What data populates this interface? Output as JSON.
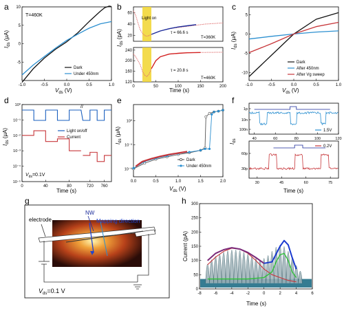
{
  "panel_letters": {
    "a": "a",
    "b": "b",
    "c": "c",
    "d": "d",
    "e": "e",
    "f": "f",
    "g": "g",
    "h": "h"
  },
  "colors": {
    "dark": "#111111",
    "blue": "#2b8fd0",
    "red": "#c7363a",
    "navy": "#1a2a9a",
    "green": "#33c23b",
    "purple": "#7a2a7a",
    "yellow": "#f2d73a",
    "teal": "#1f6e86"
  },
  "panel_a": {
    "annot": "T=460K",
    "ylabel_main": "I",
    "ylabel_sub": "ds",
    "ylabel_unit": " (μA)",
    "xlabel_main": "V",
    "xlabel_sub": "ds",
    "xlabel_unit": " (V)",
    "legend": [
      "Dark",
      "Under 450nm"
    ]
  },
  "panel_b": {
    "light_label": "Light on",
    "top_annot": "τ = 66.6 s",
    "top_temp": "T=360K",
    "bot_annot": "τ = 20.8 s",
    "bot_temp": "T=460K",
    "ylabel_main": "I",
    "ylabel_sub": "ds",
    "ylabel_unit": " (pA)",
    "xlabel": "Time (s)"
  },
  "panel_c": {
    "ylabel_main": "I",
    "ylabel_sub": "ds",
    "ylabel_unit": " (μA)",
    "xlabel_main": "V",
    "xlabel_sub": "ds",
    "xlabel_unit": " (V)",
    "legend": [
      "Dark",
      "After 450nm",
      "After Vg sweep"
    ]
  },
  "panel_d": {
    "legend": [
      "Light on/off",
      "Current"
    ],
    "annot_main": "V",
    "annot_sub": "ds",
    "annot_rest": "=0.1V",
    "ylabel_main": "I",
    "ylabel_sub": "ds",
    "ylabel_unit": " (μA)",
    "xlabel": "Time (s)"
  },
  "panel_e": {
    "ylabel_main": "I",
    "ylabel_sub": "ds",
    "ylabel_unit": " (μA)",
    "xlabel_main": "V",
    "xlabel_sub": "ds",
    "xlabel_unit": " (V)",
    "legend": [
      "Dark",
      "Under 450nm"
    ]
  },
  "panel_f": {
    "top_legend": "1.5V",
    "bot_legend": "0.2V",
    "ylabel_main": "I",
    "ylabel_sub": "ds",
    "xlabel": "Time (s)"
  },
  "panel_g": {
    "electrode": "electrode",
    "nw": "NW",
    "mapping": "Mapping direction",
    "vds_main": "V",
    "vds_sub": "ds",
    "vds_rest": "=0.1 V"
  },
  "panel_h": {
    "ylabel": "Current (pA)",
    "xlabel": "Time (s)"
  },
  "chart_data": [
    {
      "panel": "a",
      "type": "line",
      "xlabel": "Vds (V)",
      "ylabel": "Ids (μA)",
      "xlim": [
        -1.0,
        1.0
      ],
      "ylim": [
        -10,
        10
      ],
      "xticks": [
        "-1.0",
        "-0.5",
        "0.0",
        "0.5",
        "1.0"
      ],
      "yticks": [
        "-5",
        "0",
        "5",
        "10"
      ],
      "series": [
        {
          "name": "Dark",
          "x": [
            -1.0,
            -0.75,
            -0.5,
            -0.25,
            0,
            0.25,
            0.5,
            0.75,
            0.85,
            0.95,
            1.0
          ],
          "y": [
            -10.5,
            -6.8,
            -3.9,
            -1.5,
            0.5,
            3.0,
            6.0,
            8.8,
            9.8,
            10.2,
            10.1
          ]
        },
        {
          "name": "Under 450nm",
          "x": [
            -1.0,
            -0.75,
            -0.5,
            -0.25,
            0,
            0.25,
            0.5,
            0.75,
            1.0
          ],
          "y": [
            -8.5,
            -5.8,
            -3.5,
            -1.2,
            0.9,
            2.6,
            4.2,
            5.4,
            6.0
          ]
        }
      ]
    },
    {
      "panel": "b-top",
      "type": "line",
      "xlabel": "Time (s)",
      "ylabel": "Ids (pA)",
      "xlim": [
        0,
        200
      ],
      "ylim": [
        10,
        70
      ],
      "yticks": [
        "20",
        "40",
        "60"
      ],
      "light_on": [
        20,
        40
      ],
      "series": [
        {
          "name": "data",
          "x": [
            0,
            5,
            10,
            15,
            20,
            25,
            30,
            35,
            40,
            50,
            60,
            80,
            100,
            120,
            140,
            160,
            180,
            200
          ],
          "y": [
            63,
            55,
            42,
            30,
            24,
            20,
            19,
            20,
            22,
            25,
            28,
            32,
            34,
            36,
            38,
            40,
            41,
            42
          ]
        },
        {
          "name": "fit",
          "x": [
            40,
            60,
            80,
            100,
            120,
            140
          ],
          "y": [
            22,
            28,
            32,
            35,
            37,
            39
          ]
        }
      ]
    },
    {
      "panel": "b-bottom",
      "type": "line",
      "xlabel": "Time (s)",
      "ylabel": "Ids (pA)",
      "xlim": [
        0,
        200
      ],
      "ylim": [
        120,
        250
      ],
      "xticks": [
        "0",
        "50",
        "100",
        "150",
        "200"
      ],
      "yticks": [
        "120",
        "160",
        "200",
        "240"
      ],
      "light_on": [
        20,
        40
      ],
      "series": [
        {
          "name": "data",
          "x": [
            0,
            5,
            10,
            15,
            20,
            25,
            30,
            35,
            40,
            50,
            60,
            80,
            100,
            120,
            150,
            200
          ],
          "y": [
            225,
            215,
            200,
            185,
            160,
            145,
            140,
            150,
            170,
            200,
            215,
            225,
            228,
            230,
            231,
            232
          ]
        },
        {
          "name": "fit",
          "x": [
            40,
            50,
            60,
            80,
            100,
            120,
            150
          ],
          "y": [
            170,
            200,
            215,
            225,
            228,
            230,
            231
          ]
        }
      ]
    },
    {
      "panel": "c",
      "type": "line",
      "xlabel": "Vds (V)",
      "ylabel": "Ids (μA)",
      "xlim": [
        -1.0,
        1.0
      ],
      "ylim": [
        -12,
        7
      ],
      "xticks": [
        "-1.0",
        "-0.5",
        "0.0",
        "0.5",
        "1.0"
      ],
      "yticks": [
        "-10",
        "-5",
        "0",
        "5"
      ],
      "series": [
        {
          "name": "Dark",
          "x": [
            -1.0,
            -0.5,
            0,
            0.5,
            1.0
          ],
          "y": [
            -11,
            -5.5,
            0,
            3.8,
            5.5
          ]
        },
        {
          "name": "After 450nm",
          "x": [
            -1.0,
            -0.5,
            0,
            0.5,
            1.0
          ],
          "y": [
            -1.3,
            -0.6,
            0,
            0.5,
            0.8
          ]
        },
        {
          "name": "After Vg sweep",
          "x": [
            -1.0,
            -0.5,
            0,
            0.5,
            1.0
          ],
          "y": [
            -4.8,
            -2.5,
            0,
            1.9,
            3.0
          ]
        }
      ]
    },
    {
      "panel": "d",
      "type": "line",
      "xlabel": "Time (s)",
      "ylabel": "Ids (μA)",
      "xlim": [
        0,
        780
      ],
      "ylim": [
        1e-05,
        1
      ],
      "yscale": "log",
      "xticks": [
        "0",
        "40",
        "80",
        "720",
        "760"
      ],
      "yticks": [
        "10⁻⁵",
        "10⁻⁴",
        "10⁻³",
        "10⁻²",
        "10⁻¹",
        "10⁰"
      ],
      "series": [
        {
          "name": "Light on/off",
          "values": "square wave, period ≈ 40 s"
        },
        {
          "name": "Current",
          "x": [
            0,
            20,
            40,
            60,
            80,
            700,
            720,
            740,
            760,
            780
          ],
          "y": [
            0.01,
            0.02,
            0.004,
            0.005,
            0.001,
            0.0005,
            0.0008,
            0.0002,
            0.0005,
            0.0001
          ]
        }
      ]
    },
    {
      "panel": "e",
      "type": "line",
      "xlabel": "Vds (V)",
      "ylabel": "Ids (μA)",
      "xlim": [
        0,
        2.0
      ],
      "ylim": [
        1e-07,
        100.0
      ],
      "yscale": "log",
      "xticks": [
        "0.0",
        "0.5",
        "1.0",
        "1.5",
        "2.0"
      ],
      "yticks": [
        "10⁻⁶",
        "10⁻³",
        "10⁰"
      ],
      "series": [
        {
          "name": "Dark",
          "x": [
            0,
            0.25,
            0.5,
            0.75,
            1.0,
            1.25,
            1.5,
            1.6,
            1.62,
            1.7,
            1.8,
            1.9,
            2.0
          ],
          "y": [
            1e-06,
            5e-06,
            1.5e-05,
            3e-05,
            6e-05,
            0.0001,
            0.0002,
            0.0004,
            3,
            8,
            12,
            15,
            20
          ]
        },
        {
          "name": "Under 450nm",
          "x": [
            0,
            0.25,
            0.5,
            0.75,
            1.0,
            1.25,
            1.5,
            1.6,
            1.7,
            1.75,
            1.8,
            1.9,
            2.0
          ],
          "y": [
            1.2e-06,
            8e-06,
            2e-05,
            4e-05,
            8e-05,
            0.00012,
            0.0002,
            0.0003,
            0.0003,
            6,
            12,
            15,
            20
          ]
        }
      ]
    },
    {
      "panel": "f-top",
      "type": "line",
      "xlabel": "Time (s)",
      "ylabel": "Ids",
      "xlim": [
        35,
        120
      ],
      "xticks": [
        "40",
        "60",
        "80",
        "100",
        "120"
      ],
      "yticks": [
        "1p",
        "10n",
        "100n"
      ],
      "series": [
        {
          "name": "1.5V",
          "values": "switching between ≈10n and ≈100n"
        }
      ]
    },
    {
      "panel": "f-bottom",
      "type": "line",
      "xlabel": "Time (s)",
      "ylabel": "Ids",
      "xlim": [
        25,
        80
      ],
      "xticks": [
        "30",
        "45",
        "60",
        "75"
      ],
      "yticks": [
        "30p",
        "60p"
      ],
      "series": [
        {
          "name": "0.2V",
          "values": "switching between ≈30p and ≈60p"
        }
      ]
    },
    {
      "panel": "h",
      "type": "line",
      "xlabel": "Time (s)",
      "ylabel": "Current (pA)",
      "xlim": [
        -8,
        6
      ],
      "ylim": [
        0,
        300
      ],
      "xticks": [
        "-8",
        "-6",
        "-4",
        "-2",
        "0",
        "2",
        "4",
        "6"
      ],
      "yticks": [
        "0",
        "50",
        "100",
        "150",
        "200",
        "250",
        "300"
      ],
      "series": [
        {
          "name": "envelope",
          "x": [
            -7,
            -6,
            -5,
            -4,
            -3,
            -2,
            -1,
            0,
            1,
            2,
            2.5,
            3,
            3.5,
            4
          ],
          "y": [
            100,
            125,
            138,
            145,
            140,
            128,
            110,
            90,
            95,
            150,
            170,
            155,
            110,
            70
          ]
        },
        {
          "name": "peak 1",
          "x": [
            -7,
            -6,
            -5,
            -4,
            -3,
            -2,
            -1,
            0,
            1,
            2,
            3,
            4
          ],
          "y": [
            85,
            112,
            132,
            143,
            140,
            125,
            100,
            70,
            50,
            40,
            30,
            25
          ]
        },
        {
          "name": "peak 2",
          "x": [
            -7,
            -4,
            -2,
            0,
            1,
            1.5,
            2,
            2.5,
            3,
            3.5,
            4
          ],
          "y": [
            35,
            35,
            35,
            40,
            60,
            95,
            120,
            125,
            100,
            60,
            40
          ]
        },
        {
          "name": "pulses",
          "x": [
            -7,
            -6.5,
            -6,
            -5.5,
            -5,
            -4.5,
            -4,
            -3.5,
            -3,
            -2.5,
            -2,
            -1.5,
            -1,
            -0.5,
            0,
            0.5,
            1,
            1.5,
            2,
            2.5,
            3,
            3.5,
            4,
            4.5
          ],
          "y": [
            140,
            170,
            195,
            210,
            225,
            235,
            240,
            240,
            235,
            225,
            210,
            195,
            180,
            170,
            180,
            200,
            230,
            260,
            275,
            265,
            230,
            180,
            130,
            90
          ]
        }
      ]
    }
  ]
}
